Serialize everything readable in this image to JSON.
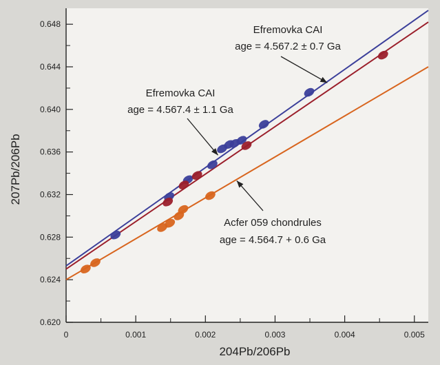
{
  "chart_data": {
    "type": "scatter",
    "xlabel": "204Pb/206Pb",
    "ylabel": "207Pb/206Pb",
    "xlim": [
      0,
      0.0052
    ],
    "ylim": [
      0.62,
      0.6495
    ],
    "x_ticks": [
      0,
      0.001,
      0.002,
      0.003,
      0.004,
      0.005
    ],
    "x_tick_labels": [
      "0",
      "0.001",
      "0.002",
      "0.003",
      "0.004",
      "0.005"
    ],
    "y_ticks": [
      0.62,
      0.624,
      0.628,
      0.632,
      0.636,
      0.64,
      0.644,
      0.648
    ],
    "y_tick_labels": [
      "0.620",
      "0.624",
      "0.628",
      "0.632",
      "0.636",
      "0.640",
      "0.644",
      "0.648"
    ],
    "grid": false,
    "colors": {
      "blue": "#3b3f9a",
      "red": "#9b1f2b",
      "orange": "#d8651e"
    },
    "series": [
      {
        "color": "blue",
        "line": {
          "x": [
            0,
            0.0052
          ],
          "y": [
            0.6253,
            0.6493
          ]
        },
        "points": [
          {
            "x": 0.00071,
            "y": 0.6282
          },
          {
            "x": 0.00148,
            "y": 0.6318
          },
          {
            "x": 0.00175,
            "y": 0.6334
          },
          {
            "x": 0.0021,
            "y": 0.6348
          },
          {
            "x": 0.00224,
            "y": 0.6363
          },
          {
            "x": 0.00234,
            "y": 0.6367
          },
          {
            "x": 0.00242,
            "y": 0.6368
          },
          {
            "x": 0.00252,
            "y": 0.6371
          },
          {
            "x": 0.00284,
            "y": 0.6386
          },
          {
            "x": 0.00349,
            "y": 0.6416
          }
        ]
      },
      {
        "color": "red",
        "line": {
          "x": [
            0,
            0.0052
          ],
          "y": [
            0.625,
            0.6482
          ]
        },
        "points": [
          {
            "x": 0.00146,
            "y": 0.6313
          },
          {
            "x": 0.00169,
            "y": 0.6329
          },
          {
            "x": 0.00188,
            "y": 0.6338
          },
          {
            "x": 0.00259,
            "y": 0.6366
          },
          {
            "x": 0.00455,
            "y": 0.6451
          }
        ]
      },
      {
        "color": "orange",
        "line": {
          "x": [
            0,
            0.0052
          ],
          "y": [
            0.624,
            0.644
          ]
        },
        "points": [
          {
            "x": 0.00028,
            "y": 0.625
          },
          {
            "x": 0.00042,
            "y": 0.6256
          },
          {
            "x": 0.00138,
            "y": 0.6289
          },
          {
            "x": 0.00149,
            "y": 0.6293
          },
          {
            "x": 0.00162,
            "y": 0.63
          },
          {
            "x": 0.00168,
            "y": 0.6306
          },
          {
            "x": 0.00207,
            "y": 0.6319
          }
        ]
      }
    ],
    "annotations": [
      {
        "line1": "Efremovka CAI",
        "line2": "age = 4.567.2 ± 0.7 Ga",
        "target": "blue",
        "arrow": {
          "x": 0.00375,
          "y": 0.6425
        }
      },
      {
        "line1": "Efremovka CAI",
        "line2": "age = 4.567.4 ± 1.1 Ga",
        "target": "blue",
        "arrow": {
          "x": 0.00218,
          "y": 0.6357
        }
      },
      {
        "line1": "Acfer 059 chondrules",
        "line2": "age = 4.564.7 + 0.6 Ga",
        "target": "orange",
        "arrow": {
          "x": 0.00245,
          "y": 0.6333
        }
      }
    ]
  }
}
